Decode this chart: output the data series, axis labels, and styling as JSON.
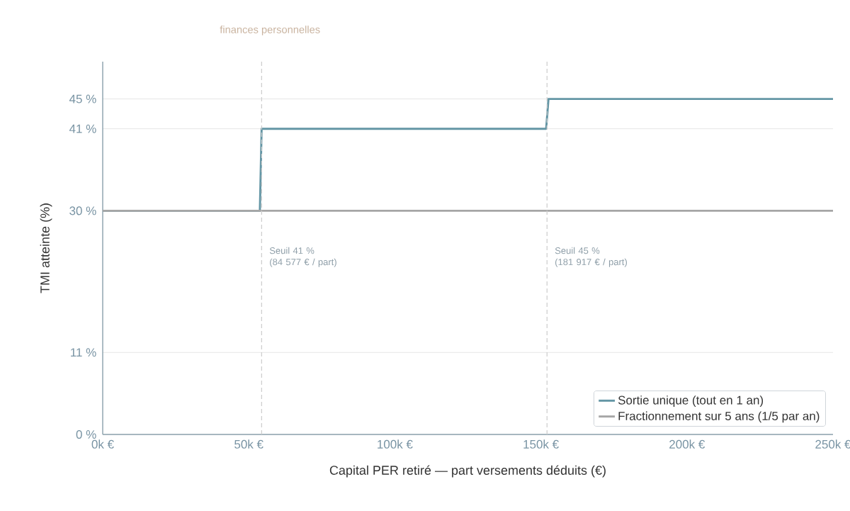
{
  "chart_data": {
    "type": "line",
    "subtitle": "finances personnelles",
    "xlabel": "Capital PER retiré — part versements déduits (€)",
    "ylabel": "TMI atteinte (%)",
    "series": [
      {
        "name": "Sortie unique (tout en 1 an)",
        "color": "#6496a5",
        "x": [
          0,
          53800,
          54400,
          151800,
          152600,
          250000
        ],
        "values": [
          30,
          30,
          41,
          41,
          45,
          45
        ]
      },
      {
        "name": "Fractionnement sur 5 ans (1/5 par an)",
        "color": "#a6a6a6",
        "x": [
          0,
          250000
        ],
        "values": [
          30,
          30
        ]
      }
    ],
    "xlim": [
      0,
      250000
    ],
    "ylim": [
      0,
      50
    ],
    "xticks": [
      {
        "value": 0,
        "label": "0k €"
      },
      {
        "value": 50000,
        "label": "50k €"
      },
      {
        "value": 100000,
        "label": "100k €"
      },
      {
        "value": 150000,
        "label": "150k €"
      },
      {
        "value": 200000,
        "label": "200k €"
      },
      {
        "value": 250000,
        "label": "250k €"
      }
    ],
    "yticks": [
      {
        "value": 0,
        "label": "0 %"
      },
      {
        "value": 11,
        "label": "11 %"
      },
      {
        "value": 30,
        "label": "30 %"
      },
      {
        "value": 41,
        "label": "41 %"
      },
      {
        "value": 45,
        "label": "45 %"
      }
    ],
    "ref_lines": [
      {
        "axis": "x",
        "value": 54400,
        "label": "Seuil 41 %\n(84 577 € / part)",
        "color": "#cccccc",
        "line_style": "dashed"
      },
      {
        "axis": "x",
        "value": 152100,
        "label": "Seuil 45 %\n(181 917 € / part)",
        "color": "#cccccc",
        "line_style": "dashed"
      }
    ],
    "grid": "y",
    "legend": "bottom right",
    "marker": "none",
    "line_style": "solid"
  }
}
